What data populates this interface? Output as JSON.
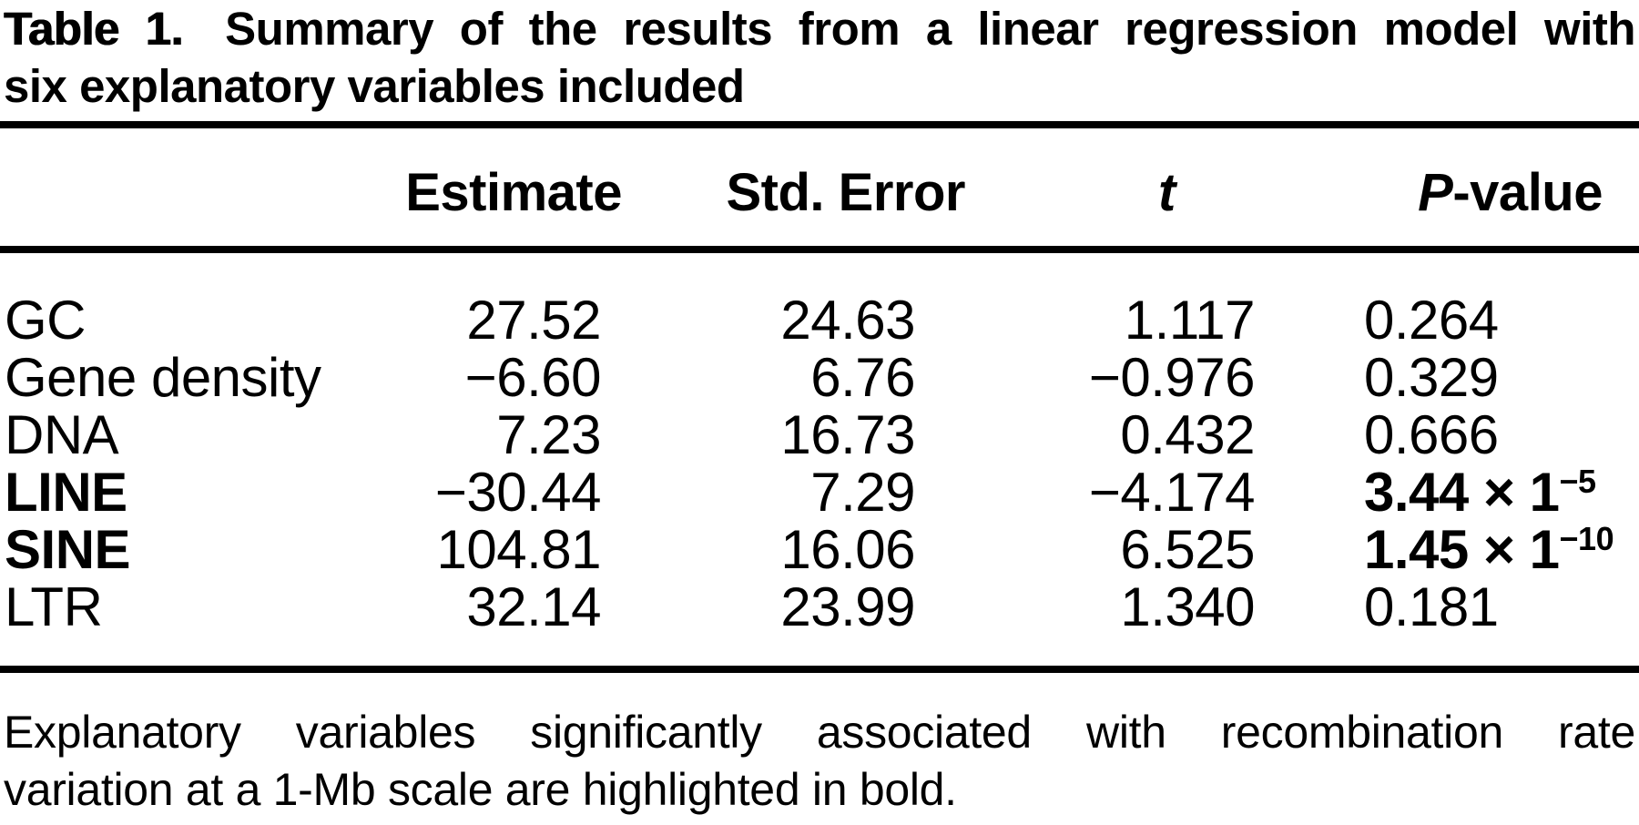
{
  "title": {
    "label": "Table 1.",
    "line1_rest": "Summary of the results from a linear regression model with",
    "line2": "six explanatory variables included"
  },
  "header": {
    "estimate": "Estimate",
    "std_error": "Std. Error",
    "t": "t",
    "p_italic": "P",
    "p_rest": "-value"
  },
  "rows": [
    {
      "name": "GC",
      "estimate": "27.52",
      "std_error": "24.63",
      "t": "1.117",
      "p": "0.264"
    },
    {
      "name": "Gene density",
      "estimate": "−6.60",
      "std_error": "6.76",
      "t": "−0.976",
      "p": "0.329"
    },
    {
      "name": "DNA",
      "estimate": "7.23",
      "std_error": "16.73",
      "t": "0.432",
      "p": "0.666"
    },
    {
      "name": "LINE",
      "estimate": "−30.44",
      "std_error": "7.29",
      "t": "−4.174",
      "p": "3.44 × 1",
      "p_sup": "−5"
    },
    {
      "name": "SINE",
      "estimate": "104.81",
      "std_error": "16.06",
      "t": "6.525",
      "p": "1.45 × 1",
      "p_sup": "−10"
    },
    {
      "name": "LTR",
      "estimate": "32.14",
      "std_error": "23.99",
      "t": "1.340",
      "p": "0.181"
    }
  ],
  "footnote": {
    "line1": "Explanatory variables significantly associated with recombination rate",
    "line2": "variation at a 1-Mb scale are highlighted in bold."
  },
  "colors": {
    "text": "#000000",
    "background": "#ffffff",
    "rule": "#000000"
  }
}
